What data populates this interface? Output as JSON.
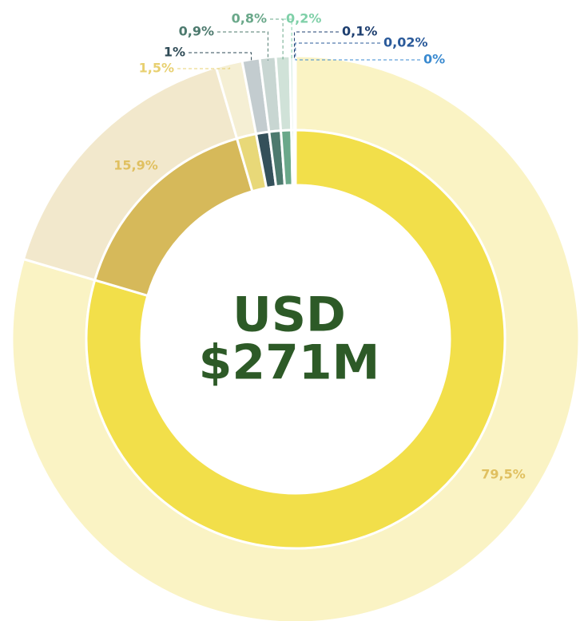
{
  "chart_data": {
    "type": "donut",
    "center_text": [
      "USD",
      "$271M"
    ],
    "series": [
      {
        "values": [
          79.5,
          15.9,
          1.5,
          1,
          0.9,
          0.8,
          0.2,
          0.1,
          0.02,
          0
        ],
        "value_labels": [
          "79,5%",
          "15,9%",
          "1,5%",
          "1%",
          "0,9%",
          "0,8%",
          "0,2%",
          "0,1%",
          "0,02%",
          "0%"
        ],
        "colors": [
          "#f2df4a",
          "#d6b95a",
          "#e8d878",
          "#34505a",
          "#4d7a6e",
          "#6aa88a",
          "#8ccfb0",
          "#1e3f70",
          "#2a5a9a",
          "#3a8ad0"
        ],
        "outer_colors": [
          "#faf3c4",
          "#f2e8cc",
          "#f5efd4",
          "#c3cccf",
          "#c8d6d2",
          "#d0e2d8",
          "#d8eee4",
          "#cdd6e6",
          "#d0dcec",
          "#d4e6f6"
        ],
        "label_colors": [
          "#e0c060",
          "#e0c060",
          "#e8d070",
          "#2e4a55",
          "#4d7a6e",
          "#6aa88a",
          "#7fd0a8",
          "#1e3f70",
          "#2a5a9a",
          "#3a8ad0"
        ]
      }
    ]
  }
}
